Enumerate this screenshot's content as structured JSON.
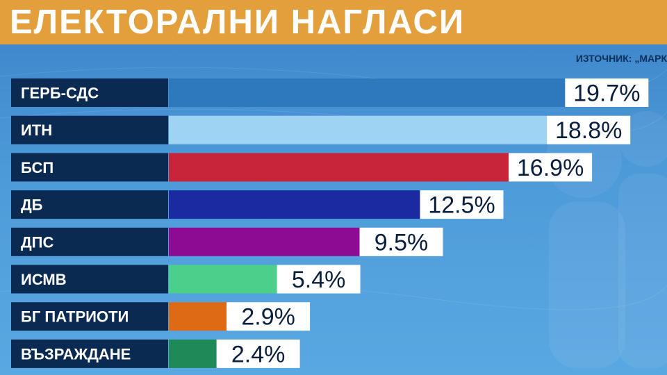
{
  "header": {
    "title": "ЕЛЕКТОРАЛНИ НАГЛАСИ",
    "source": "ИЗТОЧНИК: „МАРК"
  },
  "chart_data": {
    "type": "bar",
    "orientation": "horizontal",
    "categories": [
      "ГЕРБ-СДС",
      "ИТН",
      "БСП",
      "ДБ",
      "ДПС",
      "ИСМВ",
      "БГ ПАТРИОТИ",
      "ВЪЗРАЖДАНЕ"
    ],
    "values": [
      19.7,
      18.8,
      16.9,
      12.5,
      9.5,
      5.4,
      2.9,
      2.4
    ],
    "value_labels": [
      "19.7%",
      "18.8%",
      "16.9%",
      "12.5%",
      "9.5%",
      "5.4%",
      "2.9%",
      "2.4%"
    ],
    "unit": "%",
    "colors": [
      "#2e78bd",
      "#9fd3f3",
      "#c9253a",
      "#1b2aa0",
      "#8d0b93",
      "#4ccf8a",
      "#df6a16",
      "#1d8a57"
    ],
    "label_bg": "#0a2a52",
    "value_box_bg": "#ffffff",
    "value_text_color": "#0a1f3d",
    "grid": false,
    "legend": "none"
  }
}
